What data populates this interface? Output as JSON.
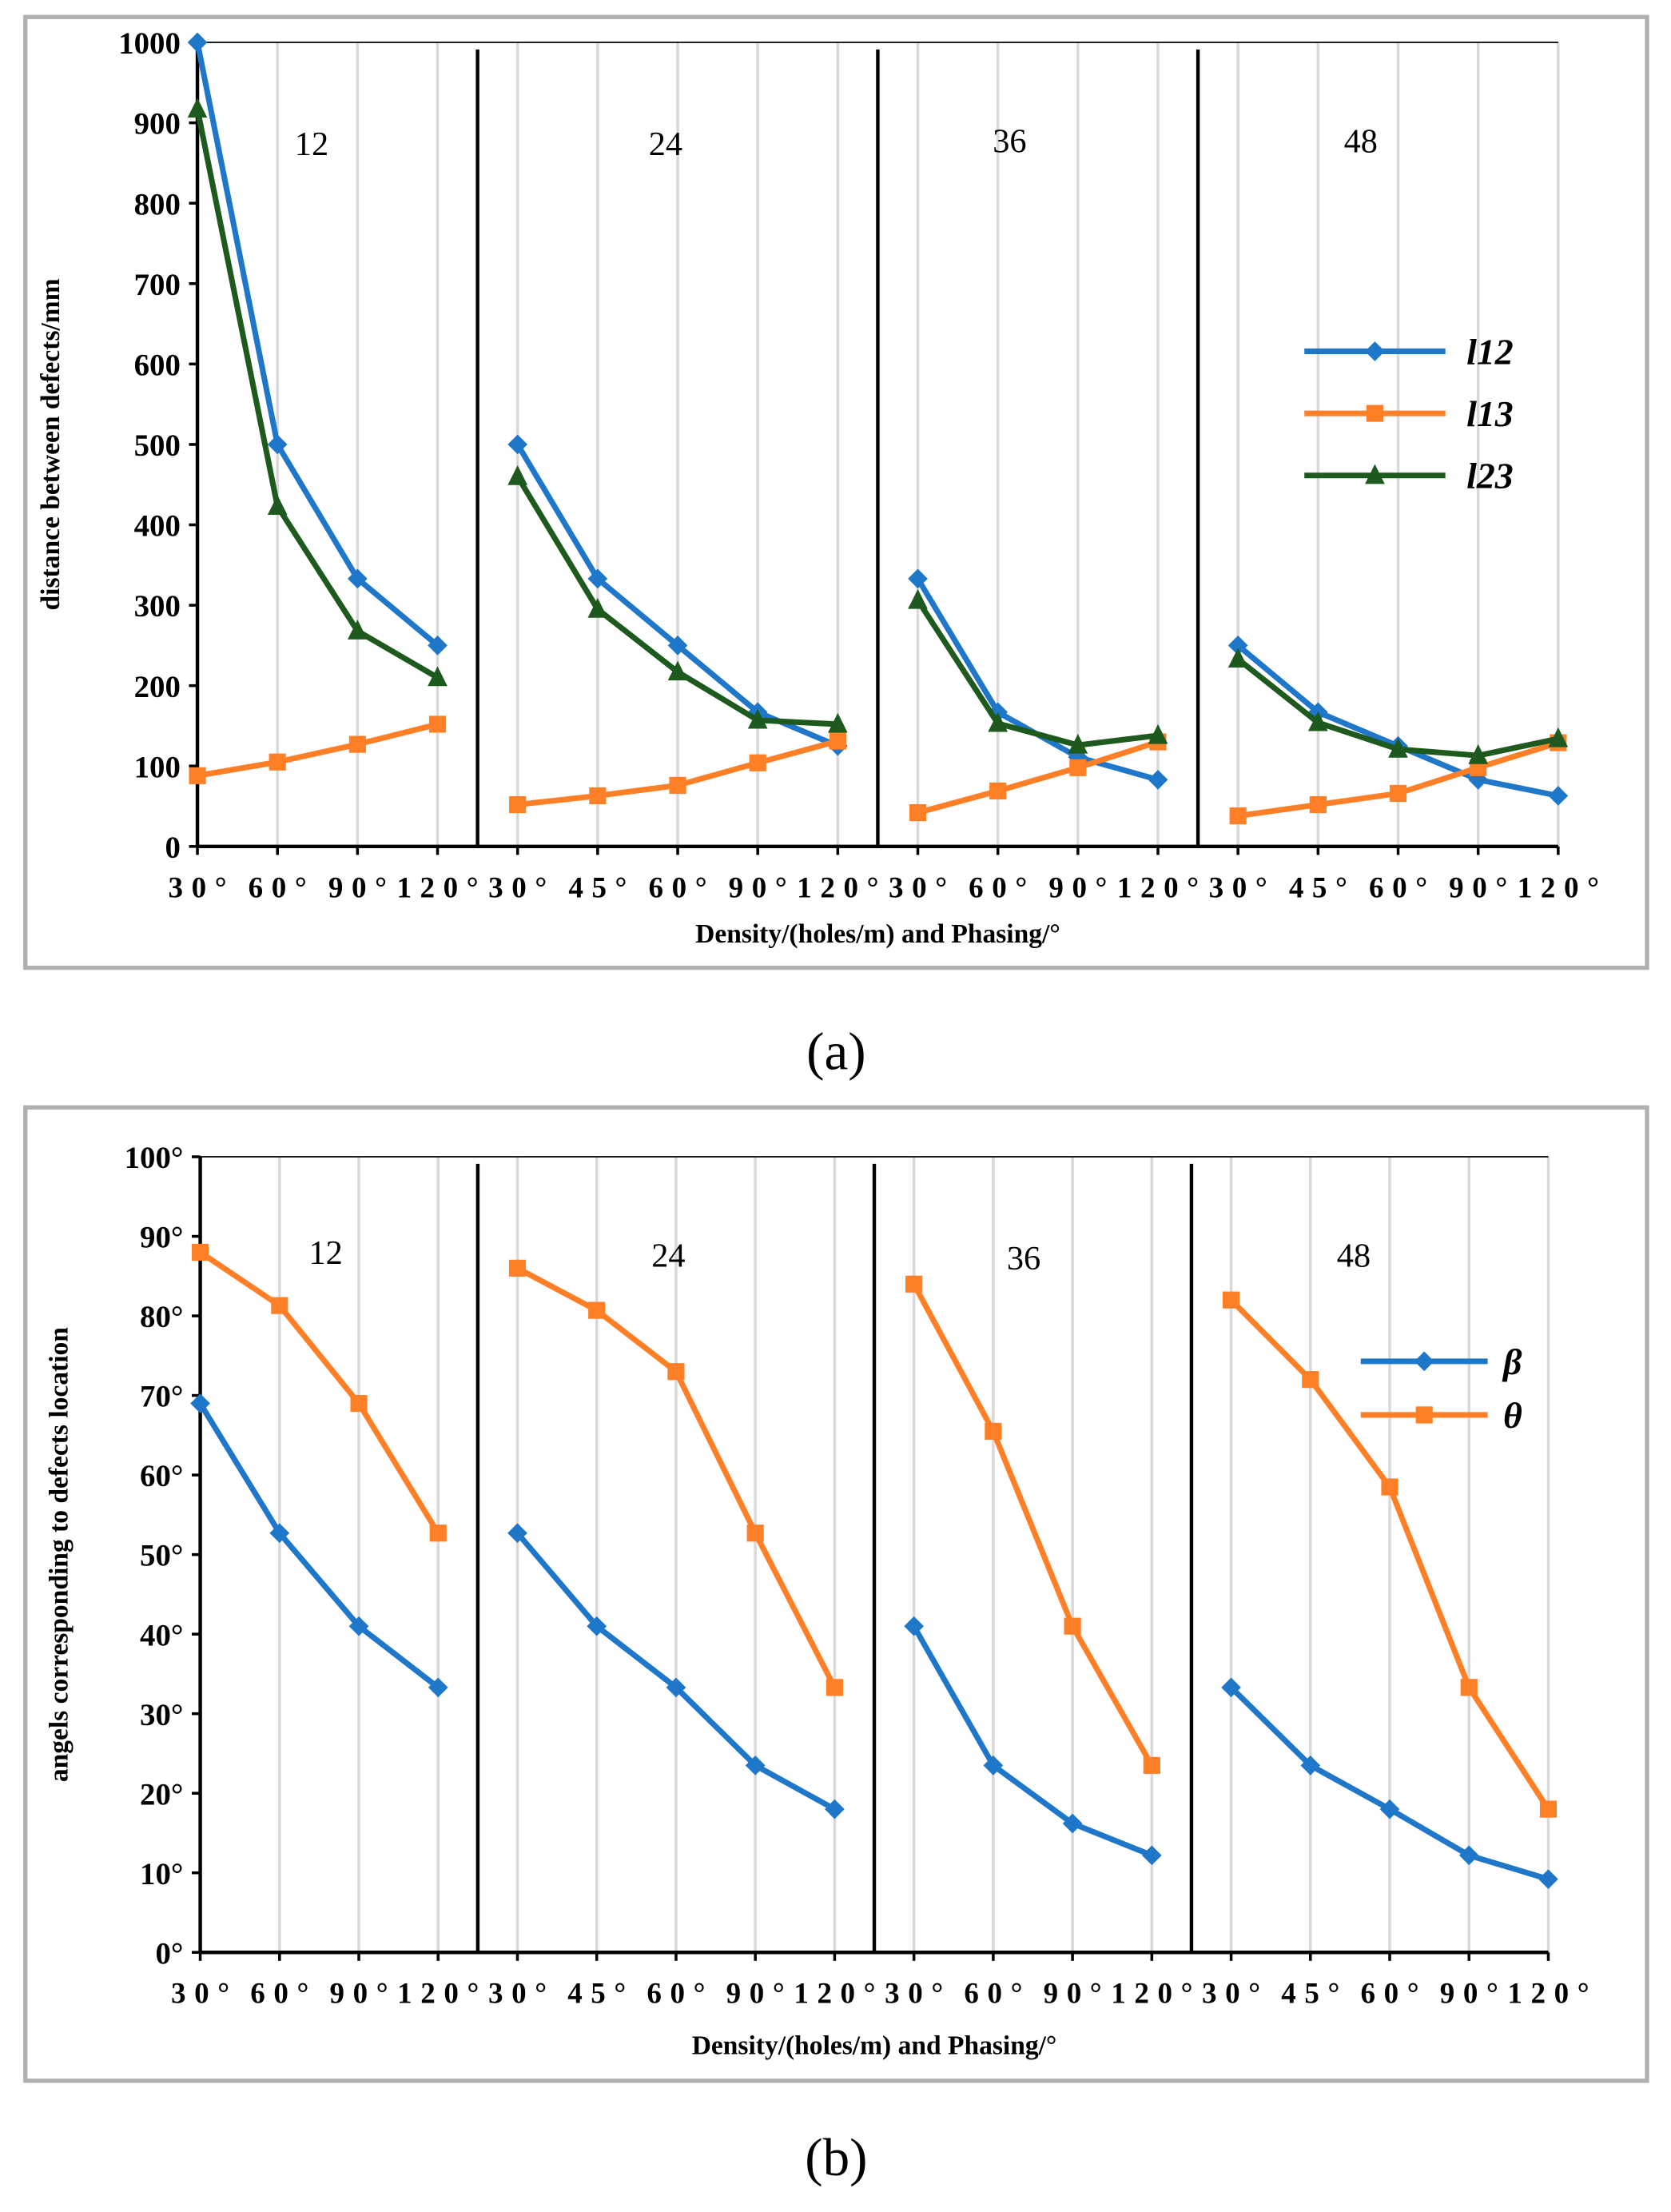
{
  "chart_data": [
    {
      "type": "line",
      "caption": "(a)",
      "xlabel": "Density/(holes/m) and Phasing/°",
      "ylabel": "distance between defects/mm",
      "ylim": [
        0,
        1000
      ],
      "yticks": [
        "0",
        "100",
        "200",
        "300",
        "400",
        "500",
        "600",
        "700",
        "800",
        "900",
        "1000"
      ],
      "grid": "vertical",
      "legend": "right",
      "groups": [
        {
          "label": "12",
          "categories": [
            "30°",
            "60°",
            "90°",
            "120°"
          ]
        },
        {
          "label": "24",
          "categories": [
            "30°",
            "45°",
            "60°",
            "90°",
            "120°"
          ]
        },
        {
          "label": "36",
          "categories": [
            "30°",
            "60°",
            "90°",
            "120°"
          ]
        },
        {
          "label": "48",
          "categories": [
            "30°",
            "45°",
            "60°",
            "90°",
            "120°"
          ]
        }
      ],
      "series": [
        {
          "name": "l12",
          "color": "#1f77c9",
          "marker": "diamond",
          "values": [
            [
              1000,
              500,
              333,
              250
            ],
            [
              500,
              333,
              250,
              167,
              125
            ],
            [
              333,
              167,
              111,
              83
            ],
            [
              250,
              167,
              125,
              83,
              63
            ]
          ]
        },
        {
          "name": "l13",
          "color": "#ff7f27",
          "marker": "square",
          "values": [
            [
              88,
              105,
              127,
              152
            ],
            [
              52,
              63,
              76,
              104,
              131
            ],
            [
              42,
              69,
              98,
              130
            ],
            [
              38,
              52,
              66,
              98,
              129
            ]
          ]
        },
        {
          "name": "l23",
          "color": "#1e5a1e",
          "marker": "triangle",
          "values": [
            [
              917,
              423,
              268,
              210
            ],
            [
              460,
              295,
              217,
              157,
              152
            ],
            [
              306,
              153,
              126,
              138
            ],
            [
              233,
              154,
              121,
              113,
              134
            ]
          ]
        }
      ]
    },
    {
      "type": "line",
      "caption": "(b)",
      "xlabel": "Density/(holes/m) and Phasing/°",
      "ylabel": "angels corresponding to defects location",
      "ylim": [
        0,
        100
      ],
      "yticks": [
        "0°",
        "10°",
        "20°",
        "30°",
        "40°",
        "50°",
        "60°",
        "70°",
        "80°",
        "90°",
        "100°"
      ],
      "grid": "vertical",
      "legend": "right",
      "groups": [
        {
          "label": "12",
          "categories": [
            "30°",
            "60°",
            "90°",
            "120°"
          ]
        },
        {
          "label": "24",
          "categories": [
            "30°",
            "45°",
            "60°",
            "90°",
            "120°"
          ]
        },
        {
          "label": "36",
          "categories": [
            "30°",
            "60°",
            "90°",
            "120°"
          ]
        },
        {
          "label": "48",
          "categories": [
            "30°",
            "45°",
            "60°",
            "90°",
            "120°"
          ]
        }
      ],
      "series": [
        {
          "name": "β",
          "color": "#1f77c9",
          "marker": "diamond",
          "values": [
            [
              69,
              52.7,
              41,
              33.3
            ],
            [
              52.7,
              41,
              33.3,
              23.5,
              18
            ],
            [
              41,
              23.5,
              16.2,
              12.2
            ],
            [
              33.3,
              23.5,
              18,
              12.2,
              9.2
            ]
          ]
        },
        {
          "name": "θ",
          "color": "#ff7f27",
          "marker": "square",
          "values": [
            [
              88,
              81.3,
              69,
              52.7
            ],
            [
              86,
              80.7,
              73,
              52.7,
              33.3
            ],
            [
              84,
              65.5,
              41,
              23.5
            ],
            [
              82,
              72,
              58.5,
              33.3,
              18
            ]
          ]
        }
      ]
    }
  ]
}
